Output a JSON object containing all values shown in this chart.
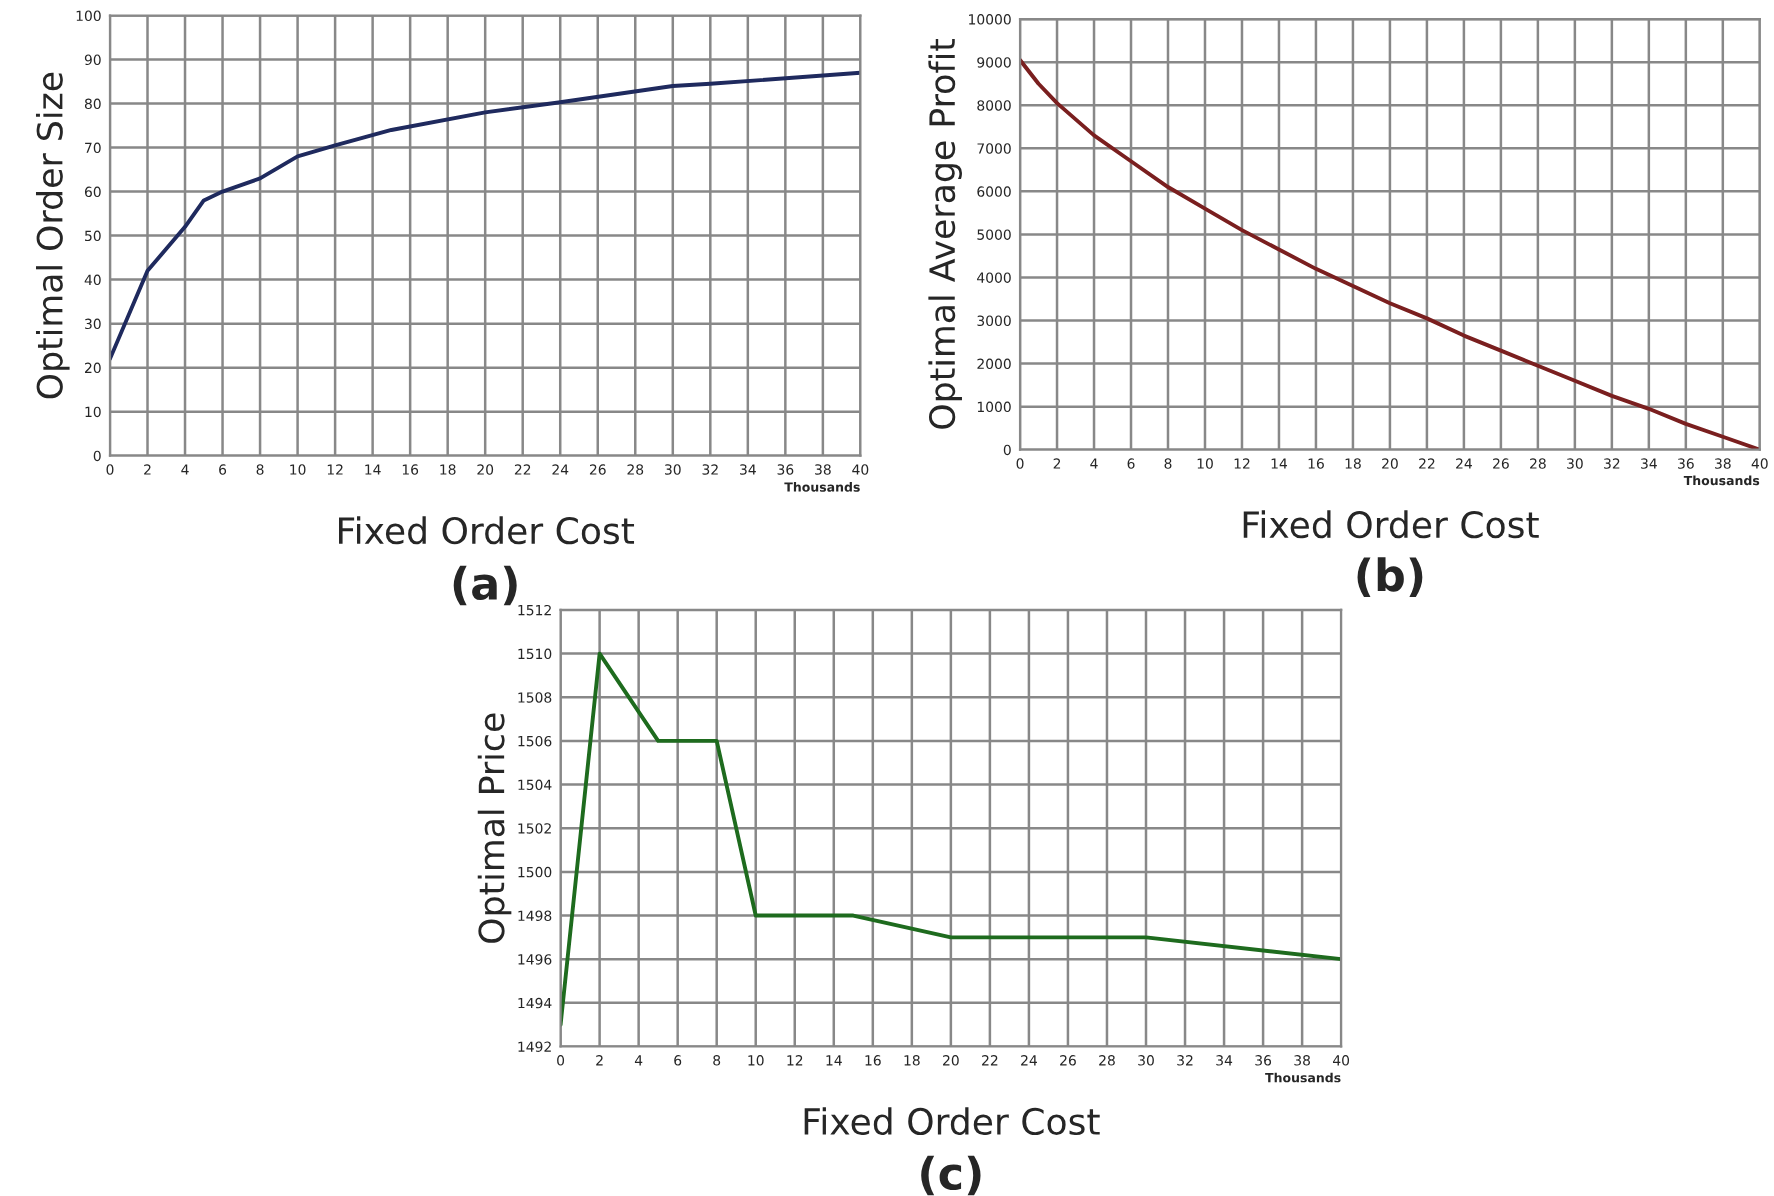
{
  "chart_data": [
    {
      "type": "line",
      "xlabel": "Fixed Order Cost",
      "ylabel": "Optimal Order Size",
      "annotations": [
        "Thousands",
        "(a)"
      ],
      "series": [
        {
          "color": "#1f2a5e",
          "x": [
            0,
            2,
            4,
            5,
            6,
            8,
            10,
            12,
            15,
            20,
            24,
            30,
            32,
            40
          ],
          "values": [
            22,
            42,
            52,
            58,
            60,
            63,
            68,
            70.5,
            74,
            78,
            80.3,
            84,
            84.5,
            87
          ]
        }
      ],
      "xlim": [
        0,
        40
      ],
      "xticks": [
        0,
        2,
        4,
        6,
        8,
        10,
        12,
        14,
        16,
        18,
        20,
        22,
        24,
        26,
        28,
        30,
        32,
        34,
        36,
        38,
        40
      ],
      "ylim": [
        0,
        100
      ],
      "yticks": [
        0,
        10,
        20,
        30,
        40,
        50,
        60,
        70,
        80,
        90,
        100
      ],
      "grid": true,
      "legend": false
    },
    {
      "type": "line",
      "xlabel": "Fixed Order Cost",
      "ylabel": "Optimal Average Profit",
      "annotations": [
        "Thousands",
        "(b)"
      ],
      "series": [
        {
          "color": "#7a1f1f",
          "x": [
            0,
            1,
            2,
            4,
            6,
            8,
            10,
            12,
            14,
            16,
            18,
            20,
            22,
            24,
            26,
            28,
            30,
            32,
            34,
            36,
            38,
            40
          ],
          "values": [
            9050,
            8500,
            8050,
            7300,
            6700,
            6100,
            5600,
            5100,
            4650,
            4200,
            3800,
            3400,
            3050,
            2650,
            2300,
            1950,
            1600,
            1250,
            950,
            600,
            300,
            0
          ]
        }
      ],
      "xlim": [
        0,
        40
      ],
      "xticks": [
        0,
        2,
        4,
        6,
        8,
        10,
        12,
        14,
        16,
        18,
        20,
        22,
        24,
        26,
        28,
        30,
        32,
        34,
        36,
        38,
        40
      ],
      "ylim": [
        0,
        10000
      ],
      "yticks": [
        0,
        1000,
        2000,
        3000,
        4000,
        5000,
        6000,
        7000,
        8000,
        9000,
        10000
      ],
      "grid": true,
      "legend": false
    },
    {
      "type": "line",
      "xlabel": "Fixed Order Cost",
      "ylabel": "Optimal Price",
      "annotations": [
        "Thousands",
        "(c)"
      ],
      "series": [
        {
          "color": "#1e6b1e",
          "x": [
            0,
            2,
            5,
            8,
            10,
            15,
            20,
            30,
            40
          ],
          "values": [
            1493,
            1510,
            1506,
            1506,
            1498,
            1498,
            1497,
            1497,
            1496
          ]
        }
      ],
      "xlim": [
        0,
        40
      ],
      "xticks": [
        0,
        2,
        4,
        6,
        8,
        10,
        12,
        14,
        16,
        18,
        20,
        22,
        24,
        26,
        28,
        30,
        32,
        34,
        36,
        38,
        40
      ],
      "ylim": [
        1492,
        1512
      ],
      "yticks": [
        1492,
        1494,
        1496,
        1498,
        1500,
        1502,
        1504,
        1506,
        1508,
        1510,
        1512
      ],
      "grid": true,
      "legend": false
    }
  ]
}
